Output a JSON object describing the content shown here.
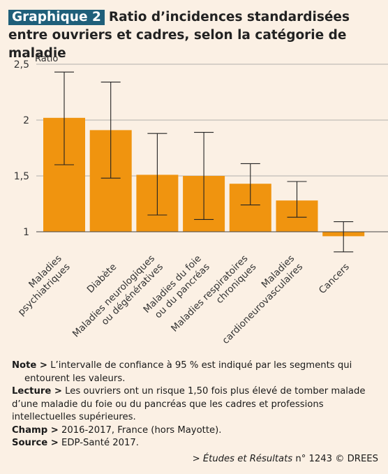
{
  "figure": {
    "badge": "Graphique 2",
    "title_line1": "Ratio d’incidences standardisées",
    "title_line2": "entre ouvriers et cadres, selon la catégorie de maladie"
  },
  "chart_data": {
    "type": "bar",
    "ylabel": "Ratio",
    "ylim": [
      0.75,
      2.5
    ],
    "baseline": 1,
    "yticks": [
      {
        "value": 1,
        "label": "1"
      },
      {
        "value": 1.5,
        "label": "1,5"
      },
      {
        "value": 2,
        "label": "2"
      },
      {
        "value": 2.5,
        "label": "2,5"
      }
    ],
    "grid": true,
    "bar_color": "#f0940f",
    "categories": [
      [
        "Maladies",
        "psychiatriques"
      ],
      [
        "Diabète"
      ],
      [
        "Maladies neurologiques",
        "ou dégénératives"
      ],
      [
        "Maladies du foie",
        "ou du pancréas"
      ],
      [
        "Maladies respiratoires",
        "chroniques"
      ],
      [
        "Maladies",
        "cardioneurovasculaires"
      ],
      [
        "Cancers"
      ]
    ],
    "values": [
      2.02,
      1.91,
      1.51,
      1.5,
      1.43,
      1.28,
      0.96
    ],
    "ci_low": [
      1.6,
      1.48,
      1.15,
      1.11,
      1.24,
      1.13,
      0.82
    ],
    "ci_high": [
      2.43,
      2.34,
      1.88,
      1.89,
      1.61,
      1.45,
      1.09
    ]
  },
  "notes": {
    "note_label": "Note >",
    "note_line1": " L’intervalle de confiance à 95 % est indiqué par les segments qui",
    "note_line2": "entourent les valeurs.",
    "lecture_label": "Lecture >",
    "lecture_line1": " Les ouvriers ont un risque 1,50 fois plus élevé de tomber malade",
    "lecture_line2": "d’une maladie du foie ou du pancréas que les cadres et professions",
    "lecture_line3": "intellectuelles supérieures.",
    "champ_label": "Champ >",
    "champ_text": " 2016-2017, France (hors Mayotte).",
    "source_label": "Source >",
    "source_text": " EDP-Santé 2017."
  },
  "credit": {
    "prefix": "> ",
    "publication": "Études et Résultats",
    "rest": " n° 1243 © DREES"
  }
}
